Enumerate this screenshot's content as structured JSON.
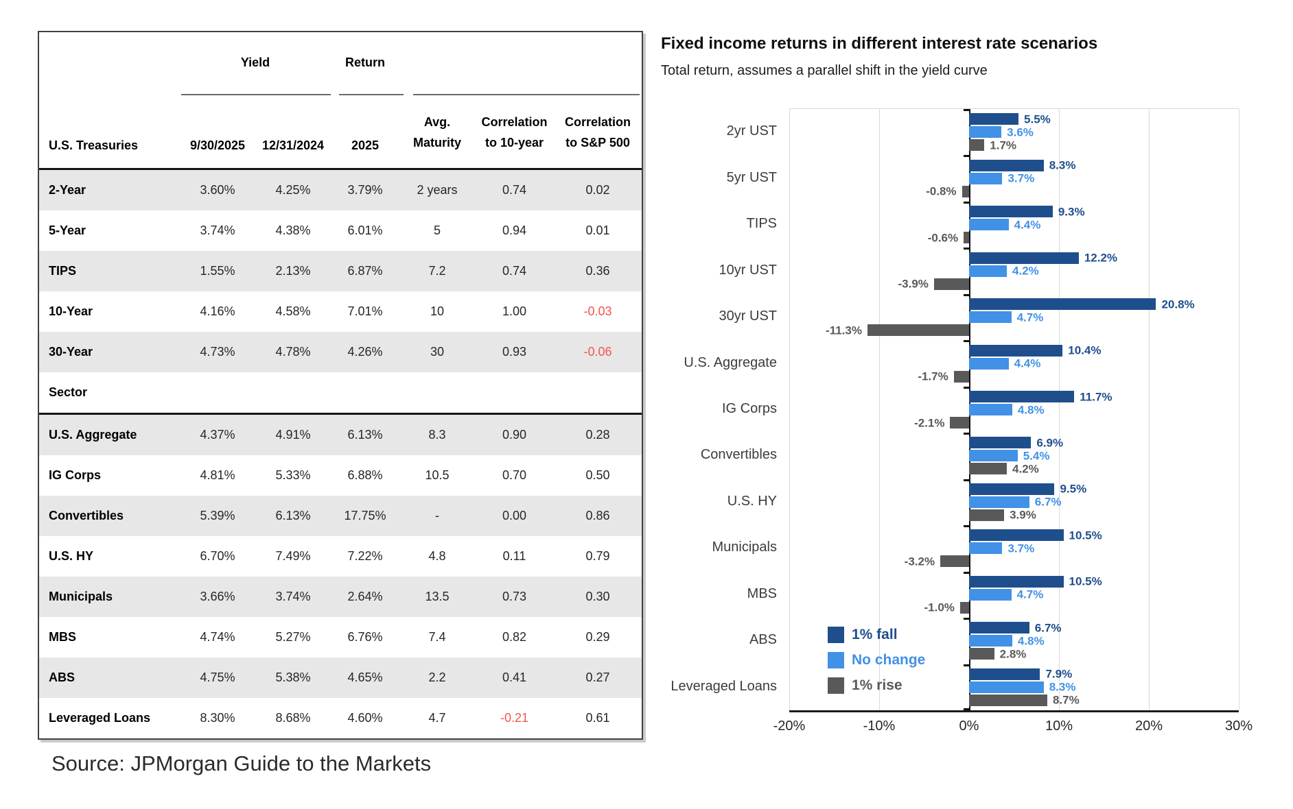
{
  "source_note": "Source: JPMorgan Guide to the Markets",
  "colors": {
    "navy": "#1F4E8C",
    "light_blue": "#4191E6",
    "gray": "#595959",
    "negative_red": "#F9524E",
    "row_stripe": "#E7E7E7",
    "gridline": "#D9D9D9",
    "axis": "#1A1A1A"
  },
  "table": {
    "group_headers": {
      "yield": "Yield",
      "return": "Return"
    },
    "column_headers": {
      "entity": "U.S. Treasuries",
      "yield_date_1": "9/30/2025",
      "yield_date_2": "12/31/2024",
      "return_year": "2025",
      "avg_maturity_l1": "Avg.",
      "avg_maturity_l2": "Maturity",
      "corr_10y_l1": "Correlation",
      "corr_10y_l2": "to 10-year",
      "corr_sp_l1": "Correlation",
      "corr_sp_l2": "to S&P 500"
    },
    "rows": [
      {
        "label": "2-Year",
        "values": [
          "3.60%",
          "4.25%",
          "3.79%",
          "2 years",
          "0.74",
          "0.02"
        ]
      },
      {
        "label": "5-Year",
        "values": [
          "3.74%",
          "4.38%",
          "6.01%",
          "5",
          "0.94",
          "0.01"
        ]
      },
      {
        "label": "TIPS",
        "values": [
          "1.55%",
          "2.13%",
          "6.87%",
          "7.2",
          "0.74",
          "0.36"
        ]
      },
      {
        "label": "10-Year",
        "values": [
          "4.16%",
          "4.58%",
          "7.01%",
          "10",
          "1.00",
          "-0.03"
        ]
      },
      {
        "label": "30-Year",
        "values": [
          "4.73%",
          "4.78%",
          "4.26%",
          "30",
          "0.93",
          "-0.06"
        ]
      },
      {
        "label": "Sector",
        "section": true,
        "values": [
          "",
          "",
          "",
          "",
          "",
          ""
        ]
      },
      {
        "label": "U.S. Aggregate",
        "thick_top": true,
        "values": [
          "4.37%",
          "4.91%",
          "6.13%",
          "8.3",
          "0.90",
          "0.28"
        ]
      },
      {
        "label": "IG Corps",
        "values": [
          "4.81%",
          "5.33%",
          "6.88%",
          "10.5",
          "0.70",
          "0.50"
        ]
      },
      {
        "label": "Convertibles",
        "values": [
          "5.39%",
          "6.13%",
          "17.75%",
          "-",
          "0.00",
          "0.86"
        ]
      },
      {
        "label": "U.S. HY",
        "values": [
          "6.70%",
          "7.49%",
          "7.22%",
          "4.8",
          "0.11",
          "0.79"
        ]
      },
      {
        "label": "Municipals",
        "values": [
          "3.66%",
          "3.74%",
          "2.64%",
          "13.5",
          "0.73",
          "0.30"
        ]
      },
      {
        "label": "MBS",
        "values": [
          "4.74%",
          "5.27%",
          "6.76%",
          "7.4",
          "0.82",
          "0.29"
        ]
      },
      {
        "label": "ABS",
        "values": [
          "4.75%",
          "5.38%",
          "4.65%",
          "2.2",
          "0.41",
          "0.27"
        ]
      },
      {
        "label": "Leveraged Loans",
        "values": [
          "8.30%",
          "8.68%",
          "4.60%",
          "4.7",
          "-0.21",
          "0.61"
        ]
      }
    ]
  },
  "chart_data": {
    "type": "bar",
    "orientation": "horizontal",
    "title": "Fixed income returns in different interest rate scenarios",
    "subtitle": "Total return, assumes a parallel shift in the yield curve",
    "categories": [
      "2yr UST",
      "5yr UST",
      "TIPS",
      "10yr UST",
      "30yr UST",
      "U.S. Aggregate",
      "IG Corps",
      "Convertibles",
      "U.S. HY",
      "Municipals",
      "MBS",
      "ABS",
      "Leveraged Loans"
    ],
    "series": [
      {
        "name": "1% fall",
        "color": "#1F4E8C",
        "values": [
          5.5,
          8.3,
          9.3,
          12.2,
          20.8,
          10.4,
          11.7,
          6.9,
          9.5,
          10.5,
          10.5,
          6.7,
          7.9
        ]
      },
      {
        "name": "No change",
        "color": "#4191E6",
        "values": [
          3.6,
          3.7,
          4.4,
          4.2,
          4.7,
          4.4,
          4.8,
          5.4,
          6.7,
          3.7,
          4.7,
          4.8,
          8.3
        ]
      },
      {
        "name": "1% rise",
        "color": "#595959",
        "values": [
          1.7,
          -0.8,
          -0.6,
          -3.9,
          -11.3,
          -1.7,
          -2.1,
          4.2,
          3.9,
          -3.2,
          -1.0,
          2.8,
          8.7
        ]
      }
    ],
    "xlim": [
      -20,
      30
    ],
    "x_ticks": [
      "-20%",
      "-10%",
      "0%",
      "10%",
      "20%",
      "30%"
    ],
    "grid": true,
    "legend": [
      "1% fall",
      "No change",
      "1% rise"
    ],
    "legend_position": "inside-bottom-left",
    "data_labels": "one-decimal-percent"
  }
}
